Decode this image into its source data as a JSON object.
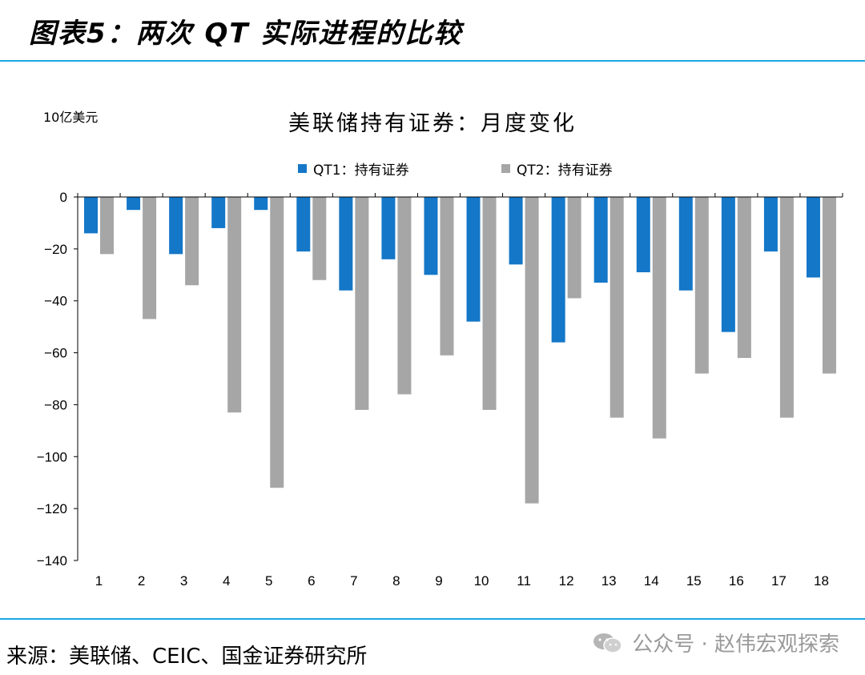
{
  "figure_title": "图表5：两次 QT 实际进程的比较",
  "source_note": "来源：美联储、CEIC、国金证券研究所",
  "watermark": "公众号 · 赵伟宏观探索",
  "colors": {
    "qt1": "#1477c8",
    "qt2": "#a6a6a6",
    "rule": "#1aa7e0"
  },
  "chart_data": {
    "type": "bar",
    "title": "美联储持有证券：月度变化",
    "unit_label": "10亿美元",
    "xlabel": "",
    "ylabel": "",
    "categories": [
      "1",
      "2",
      "3",
      "4",
      "5",
      "6",
      "7",
      "8",
      "9",
      "10",
      "11",
      "12",
      "13",
      "14",
      "15",
      "16",
      "17",
      "18"
    ],
    "series": [
      {
        "name": "QT1：持有证券",
        "values": [
          -14,
          -5,
          -22,
          -12,
          -5,
          -21,
          -36,
          -24,
          -30,
          -48,
          -26,
          -56,
          -33,
          -29,
          -36,
          -52,
          -21,
          -31
        ]
      },
      {
        "name": "QT2：持有证券",
        "values": [
          -22,
          -47,
          -34,
          -83,
          -112,
          -32,
          -82,
          -76,
          -61,
          -82,
          -118,
          -39,
          -85,
          -93,
          -68,
          -62,
          -85,
          -68
        ]
      }
    ],
    "ylim": [
      -140,
      0
    ],
    "yticks": [
      0,
      -20,
      -40,
      -60,
      -80,
      -100,
      -120,
      -140
    ],
    "grid": false,
    "legend_position": "top-center"
  }
}
